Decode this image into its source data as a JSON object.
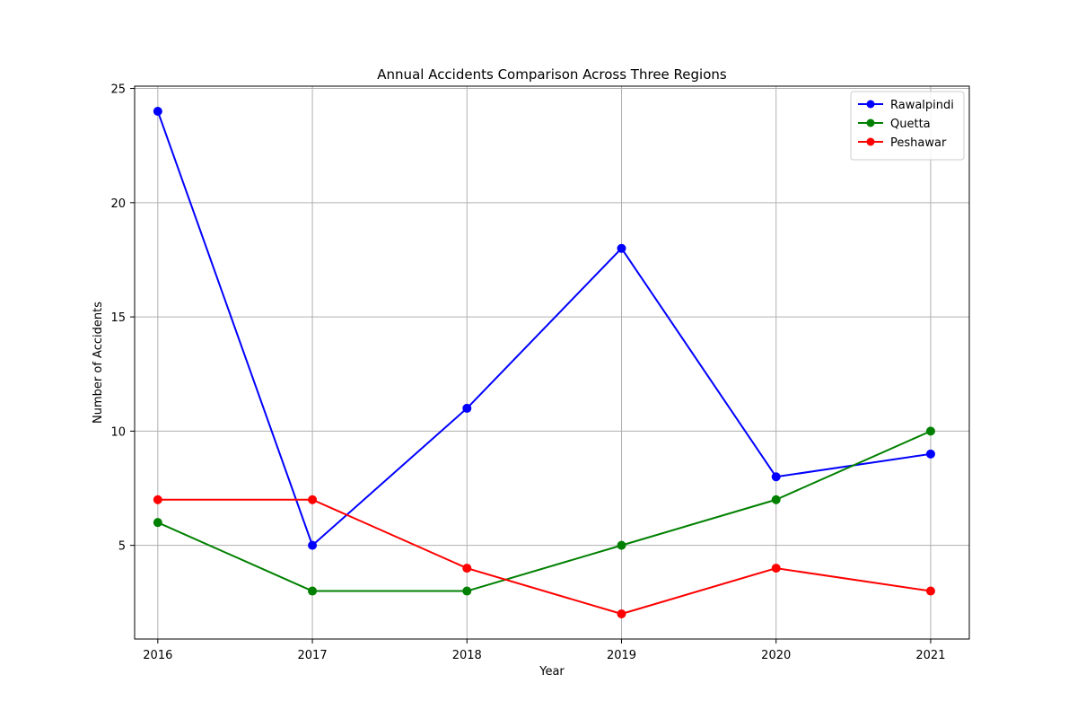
{
  "chart_data": {
    "type": "line",
    "title": "Annual Accidents Comparison Across Three Regions",
    "xlabel": "Year",
    "ylabel": "Number of Accidents",
    "x": [
      2016,
      2017,
      2018,
      2019,
      2020,
      2021
    ],
    "x_tick_labels": [
      "2016",
      "2017",
      "2018",
      "2019",
      "2020",
      "2021"
    ],
    "y_ticks": [
      5,
      10,
      15,
      20,
      25
    ],
    "y_tick_labels": [
      "5",
      "10",
      "15",
      "20",
      "25"
    ],
    "xlim": [
      2015.85,
      2021.25
    ],
    "ylim": [
      0.9,
      25.1
    ],
    "grid": true,
    "legend_position": "top-right",
    "series": [
      {
        "name": "Rawalpindi",
        "color": "#0000ff",
        "marker": "circle",
        "values": [
          24,
          5,
          11,
          18,
          8,
          9
        ]
      },
      {
        "name": "Quetta",
        "color": "#008000",
        "marker": "circle",
        "values": [
          6,
          3,
          3,
          5,
          7,
          10
        ]
      },
      {
        "name": "Peshawar",
        "color": "#ff0000",
        "marker": "circle",
        "values": [
          7,
          7,
          4,
          2,
          4,
          3
        ]
      }
    ]
  }
}
